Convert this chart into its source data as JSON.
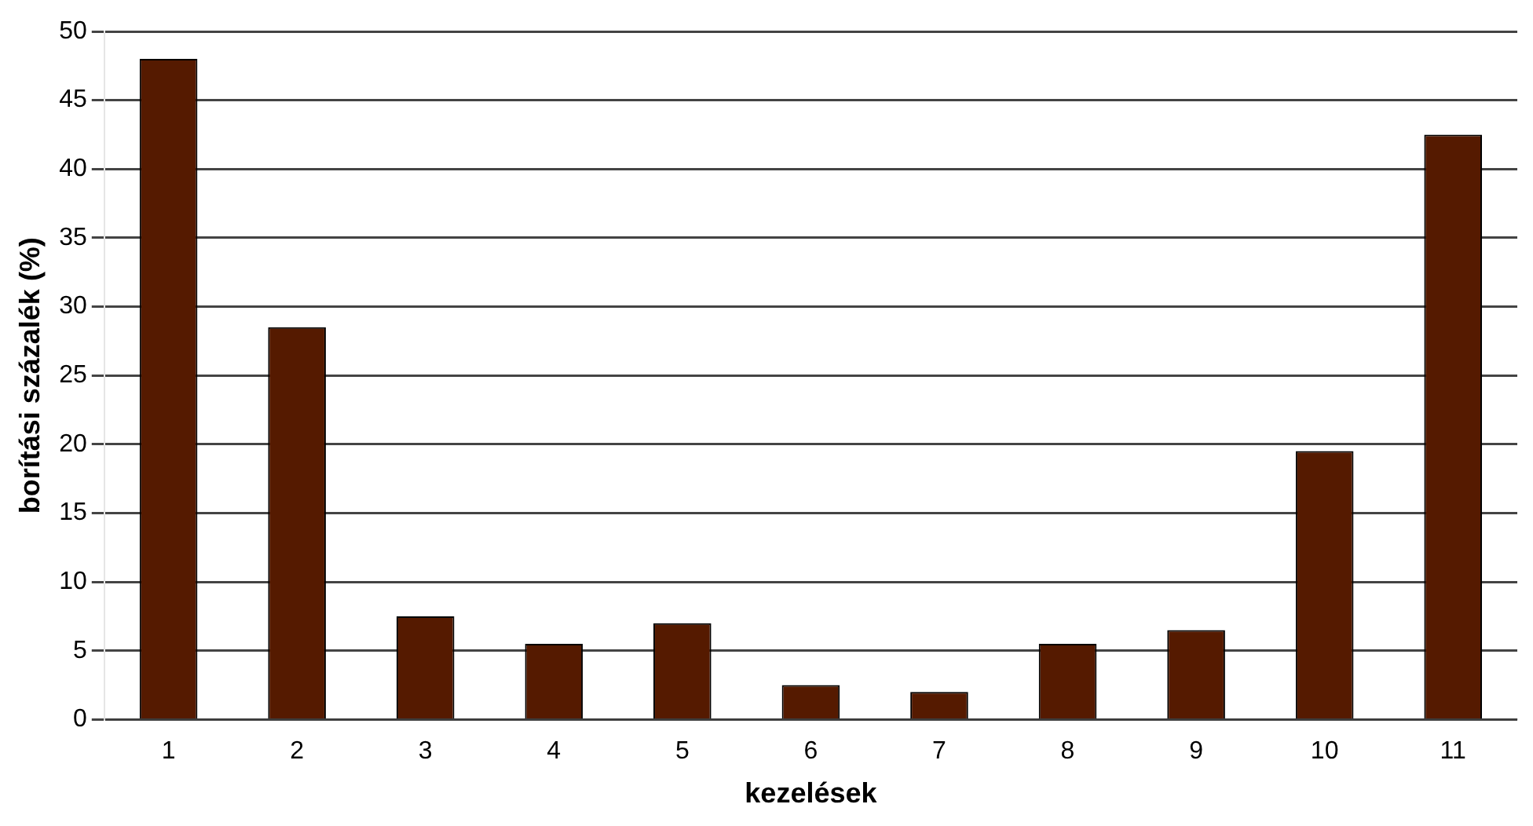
{
  "chart_data": {
    "type": "bar",
    "xlabel": "kezelések",
    "ylabel": "borítási százalék (%)",
    "categories": [
      "1",
      "2",
      "3",
      "4",
      "5",
      "6",
      "7",
      "8",
      "9",
      "10",
      "11"
    ],
    "values": [
      48,
      28.5,
      7.5,
      5.5,
      7,
      2.5,
      2,
      5.5,
      6.5,
      19.5,
      42.5
    ],
    "color": "#551a00",
    "ylim": [
      0,
      50
    ],
    "yticks": [
      0,
      5,
      10,
      15,
      20,
      25,
      30,
      35,
      40,
      45,
      50
    ],
    "grid": "y",
    "legend": false
  }
}
